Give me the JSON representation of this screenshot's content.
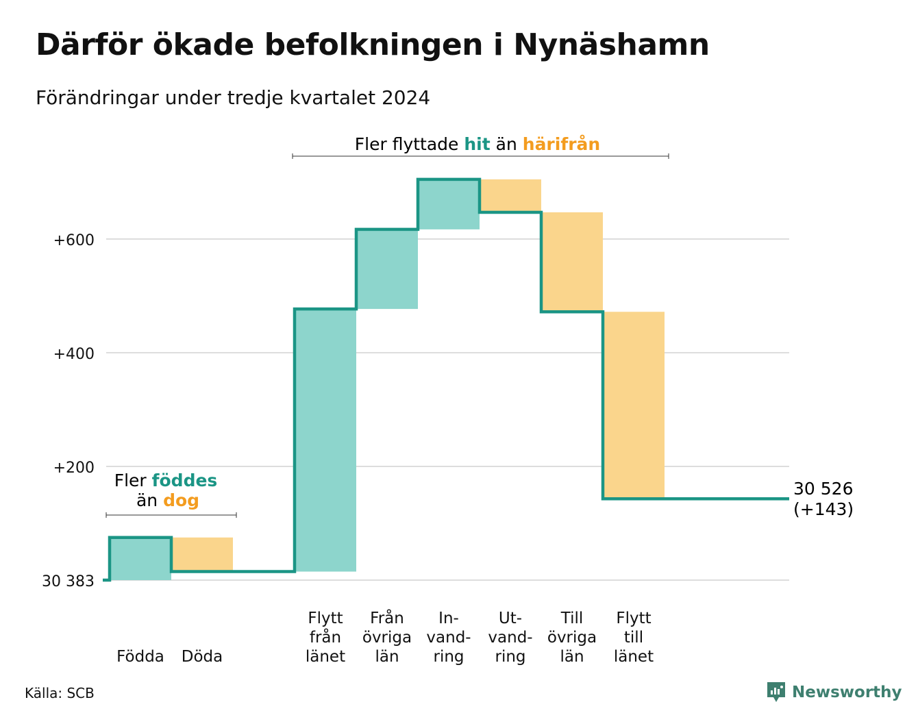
{
  "title": "Därför ökade befolkningen i Nynäshamn",
  "subtitle": "Förändringar under tredje kvartalet 2024",
  "source": "Källa: SCB",
  "brand": "Newsworthy",
  "colors": {
    "increase_fill": "#8dd5cc",
    "decrease_fill": "#fad58c",
    "line": "#1b9585",
    "accent_teal": "#1b9585",
    "accent_orange": "#f39c1f",
    "grid": "#dddddd"
  },
  "annotations": {
    "births": {
      "prefix": "Fler ",
      "hi1": "föddes",
      "line2_prefix": "än ",
      "hi2": "dog"
    },
    "migration": {
      "prefix": "Fler flyttade ",
      "hi1": "hit",
      "mid": " än ",
      "hi2": "härifrån"
    }
  },
  "chart_data": {
    "type": "waterfall",
    "title": "Därför ökade befolkningen i Nynäshamn",
    "subtitle": "Förändringar under tredje kvartalet 2024",
    "baseline": 30383,
    "baseline_label": "30 383",
    "ylim": [
      0,
      720
    ],
    "yticks": [
      {
        "value": 0,
        "label": "30 383"
      },
      {
        "value": 200,
        "label": "+200"
      },
      {
        "value": 400,
        "label": "+400"
      },
      {
        "value": 600,
        "label": "+600"
      }
    ],
    "grid": true,
    "steps": [
      {
        "label": [
          "Födda"
        ],
        "change": 75,
        "kind": "increase"
      },
      {
        "label": [
          "Döda"
        ],
        "change": -60,
        "kind": "decrease"
      },
      {
        "label": [],
        "change": 0,
        "kind": "spacer"
      },
      {
        "label": [
          "Flytt",
          "från",
          "länet"
        ],
        "change": 462,
        "kind": "increase"
      },
      {
        "label": [
          "Från",
          "övriga",
          "län"
        ],
        "change": 140,
        "kind": "increase"
      },
      {
        "label": [
          "In-",
          "vand-",
          "ring"
        ],
        "change": 88,
        "kind": "increase"
      },
      {
        "label": [
          "Ut-",
          "vand-",
          "ring"
        ],
        "change": -58,
        "kind": "decrease"
      },
      {
        "label": [
          "Till",
          "övriga",
          "län"
        ],
        "change": -175,
        "kind": "decrease"
      },
      {
        "label": [
          "Flytt",
          "till",
          "länet"
        ],
        "change": -329,
        "kind": "decrease"
      }
    ],
    "end_value_label": "30 526",
    "end_change_label": "(+143)"
  }
}
